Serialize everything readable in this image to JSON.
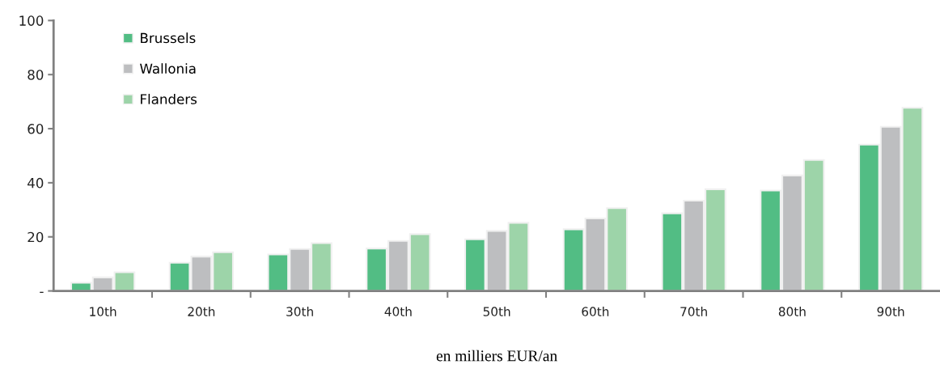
{
  "chart_data": {
    "type": "bar",
    "xlabel": "en milliers EUR/an",
    "categories": [
      "10th",
      "20th",
      "30th",
      "40th",
      "50th",
      "60th",
      "70th",
      "80th",
      "90th"
    ],
    "series": [
      {
        "name": "Brussels",
        "color": "#52bd84",
        "values": [
          3.0,
          10.4,
          13.5,
          15.7,
          19.1,
          22.8,
          28.7,
          37.1,
          54.1
        ]
      },
      {
        "name": "Wallonia",
        "color": "#bdbec0",
        "values": [
          5.0,
          12.7,
          15.5,
          18.5,
          22.2,
          26.8,
          33.4,
          42.7,
          60.7
        ]
      },
      {
        "name": "Flanders",
        "color": "#9dd4a9",
        "values": [
          6.9,
          14.3,
          17.7,
          21.0,
          25.2,
          30.6,
          37.6,
          48.4,
          67.7
        ]
      }
    ],
    "ylim": [
      0,
      100
    ],
    "yticks": [
      {
        "value": 0,
        "label": "-"
      },
      20,
      40,
      60,
      80,
      100
    ],
    "grid": false,
    "legend": "top left"
  }
}
